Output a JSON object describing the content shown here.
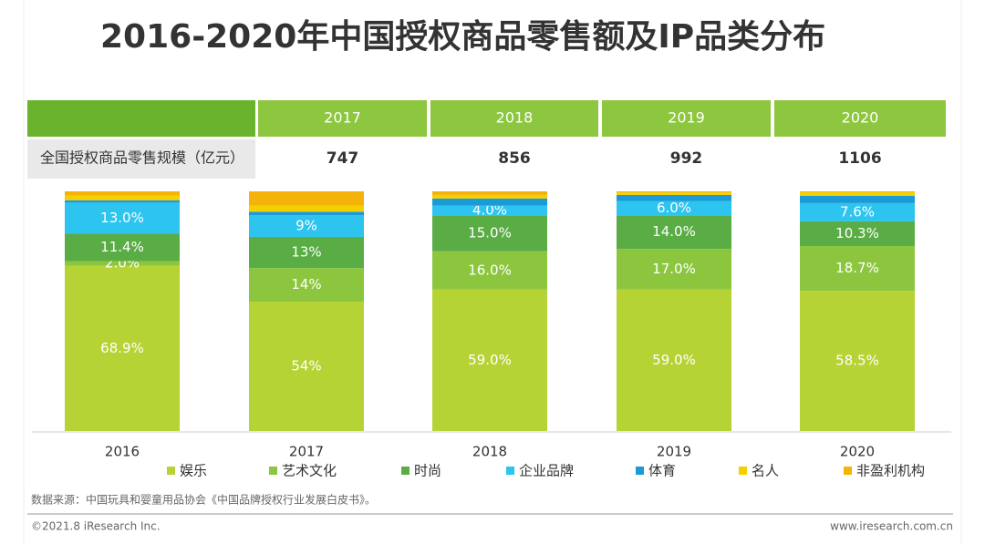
{
  "chart_data": {
    "type": "stacked-bar",
    "title": "2016-2020年中国授权商品零售额及IP品类分布",
    "categories": [
      "2016",
      "2017",
      "2018",
      "2019",
      "2020"
    ],
    "ylim": [
      0,
      100
    ],
    "series": [
      {
        "name": "娱乐",
        "color": "#b5d334",
        "values": [
          68.9,
          54,
          59.0,
          59.0,
          58.5
        ],
        "value_labels": [
          "68.9%",
          "54%",
          "59.0%",
          "59.0%",
          "58.5%"
        ]
      },
      {
        "name": "艺术文化",
        "color": "#8cc63f",
        "values": [
          2.0,
          14,
          16.0,
          17.0,
          18.7
        ],
        "value_labels": [
          "2.0%",
          "14%",
          "16.0%",
          "17.0%",
          "18.7%"
        ]
      },
      {
        "name": "时尚",
        "color": "#5aac44",
        "values": [
          11.4,
          13,
          15.0,
          14.0,
          10.3
        ],
        "value_labels": [
          "11.4%",
          "13%",
          "15.0%",
          "14.0%",
          "10.3%"
        ]
      },
      {
        "name": "企业品牌",
        "color": "#2dc4f0",
        "values": [
          13.0,
          9,
          4.0,
          6.0,
          7.6
        ],
        "value_labels": [
          "13.0%",
          "9%",
          "4.0%",
          "6.0%",
          "7.6%"
        ]
      },
      {
        "name": "体育",
        "color": "#1a9ad6",
        "values": [
          1.0,
          1.5,
          3.0,
          2.5,
          3.0
        ],
        "value_labels": [
          null,
          null,
          null,
          null,
          null
        ]
      },
      {
        "name": "名人",
        "color": "#f5d000",
        "values": [
          2.0,
          2.5,
          1.5,
          1.0,
          1.5
        ],
        "value_labels": [
          null,
          null,
          null,
          null,
          null
        ]
      },
      {
        "name": "非盈利机构",
        "color": "#f5b20a",
        "values": [
          1.7,
          6,
          1.5,
          0.5,
          0.4
        ],
        "value_labels": [
          null,
          null,
          null,
          null,
          null
        ]
      }
    ]
  },
  "table": {
    "years": [
      "2017",
      "2018",
      "2019",
      "2020"
    ],
    "row_label": "全国授权商品零售规模（亿元）",
    "values": [
      747,
      856,
      992,
      1106
    ]
  },
  "source": "数据来源：中国玩具和婴童用品协会《中国品牌授权行业发展白皮书》。",
  "footer": {
    "copyright": "©2021.8 iResearch Inc.",
    "url": "www.iresearch.com.cn"
  }
}
